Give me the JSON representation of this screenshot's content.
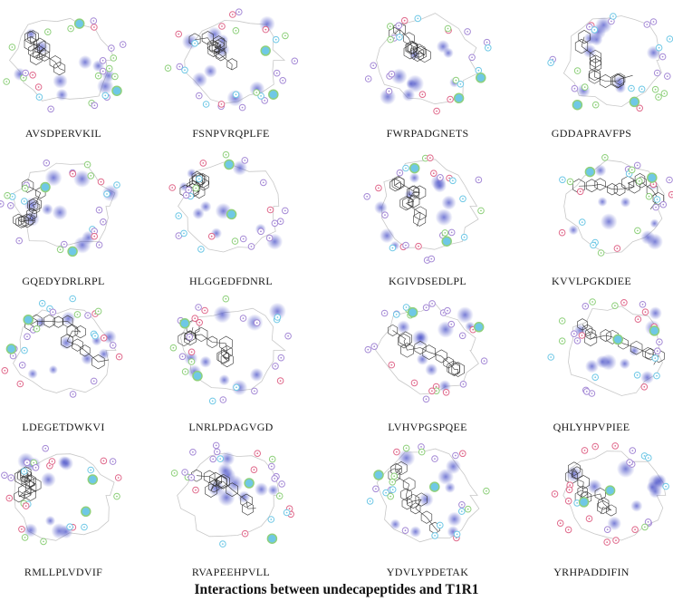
{
  "caption": "Interactions between undecapeptides and T1R1",
  "colors": {
    "hydrophobic": "#4b52c8",
    "polar": "#6fc8e6",
    "charged_negative": "#e06a8c",
    "charged_positive": "#a58ad6",
    "glycine": "#8fd07c",
    "bond": "#333333",
    "pocket": "#c8c8c8"
  },
  "panels": [
    {
      "label": "AVSDPERVKIL"
    },
    {
      "label": "FSNPVRQPLFE"
    },
    {
      "label": "FWRPADGNETS"
    },
    {
      "label": "GDDAPRAVFPS"
    },
    {
      "label": "GQEDYDRLRPL"
    },
    {
      "label": "HLGGEDFDNRL"
    },
    {
      "label": "KGIVDSEDLPL"
    },
    {
      "label": "KVVLPGKDIEE"
    },
    {
      "label": "LDEGETDWKVI"
    },
    {
      "label": "LNRLPDAGVGD"
    },
    {
      "label": "LVHVPGSPQEE"
    },
    {
      "label": "QHLYHPVPIEE"
    },
    {
      "label": "RMLLPLVDVIF"
    },
    {
      "label": "RVAPEEHPVLL"
    },
    {
      "label": "YDVLYPDETAK"
    },
    {
      "label": "YRHPADDIFIN"
    }
  ]
}
